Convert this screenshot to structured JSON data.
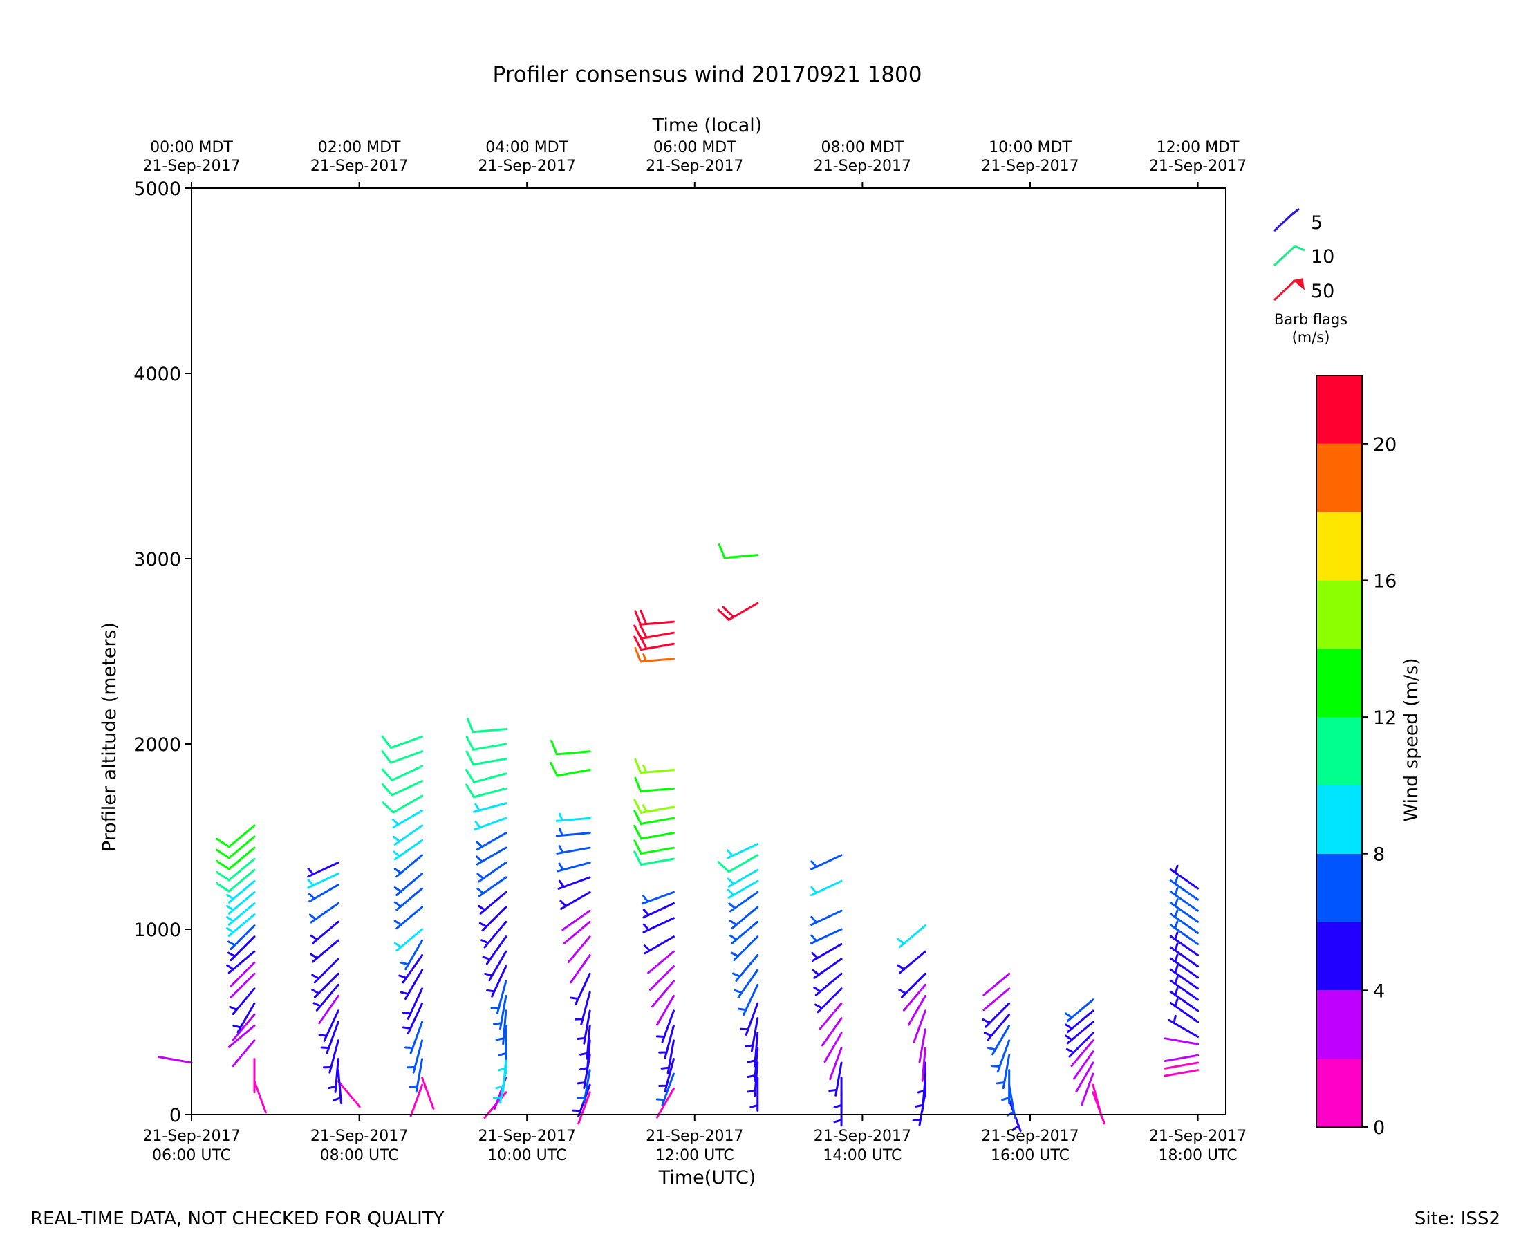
{
  "chart_data": {
    "type": "wind_barbs",
    "title": "Profiler consensus wind 20170921 1800",
    "xlabel": "Time(UTC)",
    "x2label": "Time (local)",
    "ylabel": "Profiler altitude (meters)",
    "ylim": [
      0,
      5000
    ],
    "xlim": [
      "2017-09-21T06:00Z",
      "2017-09-21T18:20Z"
    ],
    "yticks": [
      "0",
      "1000",
      "2000",
      "3000",
      "4000",
      "5000"
    ],
    "xticks_utc": [
      {
        "date": "21-Sep-2017",
        "time": "06:00 UTC"
      },
      {
        "date": "21-Sep-2017",
        "time": "08:00 UTC"
      },
      {
        "date": "21-Sep-2017",
        "time": "10:00 UTC"
      },
      {
        "date": "21-Sep-2017",
        "time": "12:00 UTC"
      },
      {
        "date": "21-Sep-2017",
        "time": "14:00 UTC"
      },
      {
        "date": "21-Sep-2017",
        "time": "16:00 UTC"
      },
      {
        "date": "21-Sep-2017",
        "time": "18:00 UTC"
      }
    ],
    "xticks_local": [
      {
        "time": "00:00 MDT",
        "date": "21-Sep-2017"
      },
      {
        "time": "02:00 MDT",
        "date": "21-Sep-2017"
      },
      {
        "time": "04:00 MDT",
        "date": "21-Sep-2017"
      },
      {
        "time": "06:00 MDT",
        "date": "21-Sep-2017"
      },
      {
        "time": "08:00 MDT",
        "date": "21-Sep-2017"
      },
      {
        "time": "10:00 MDT",
        "date": "21-Sep-2017"
      },
      {
        "time": "12:00 MDT",
        "date": "21-Sep-2017"
      }
    ],
    "barb_legend": {
      "title": "Barb flags",
      "units": "(m/s)",
      "items": [
        {
          "label": "5",
          "color": "#2a17e8"
        },
        {
          "label": "10",
          "color": "#17f08a"
        },
        {
          "label": "50",
          "color": "#f0132b"
        }
      ]
    },
    "colorbar": {
      "label": "Wind speed (m/s)",
      "ticks": [
        "0",
        "4",
        "8",
        "12",
        "16",
        "20"
      ],
      "bounds": [
        0,
        2,
        4,
        6,
        8,
        10,
        12,
        14,
        16,
        18,
        20,
        22
      ],
      "colors": [
        "#ff00c8",
        "#bf00ff",
        "#2200ff",
        "#0055ff",
        "#00e5ff",
        "#00ff8c",
        "#00ff00",
        "#8cff00",
        "#ffe600",
        "#ff6600",
        "#ff0030"
      ]
    },
    "profiles": [
      {
        "t": "06:00",
        "levels": [
          [
            280,
            280,
            2
          ]
        ]
      },
      {
        "t": "06:45",
        "levels": [
          [
            180,
            160,
            1
          ],
          [
            300,
            180,
            1
          ],
          [
            400,
            220,
            3
          ],
          [
            480,
            230,
            3
          ],
          [
            540,
            220,
            3
          ],
          [
            600,
            210,
            5
          ],
          [
            680,
            220,
            5
          ],
          [
            760,
            225,
            3
          ],
          [
            820,
            225,
            3
          ],
          [
            880,
            230,
            5
          ],
          [
            960,
            225,
            5
          ],
          [
            1020,
            225,
            7
          ],
          [
            1080,
            230,
            9
          ],
          [
            1140,
            230,
            9
          ],
          [
            1200,
            230,
            9
          ],
          [
            1260,
            230,
            9
          ],
          [
            1320,
            230,
            11
          ],
          [
            1380,
            230,
            11
          ],
          [
            1440,
            230,
            13
          ],
          [
            1500,
            230,
            13
          ],
          [
            1560,
            230,
            13
          ]
        ]
      },
      {
        "t": "07:45",
        "levels": [
          [
            180,
            140,
            1
          ],
          [
            240,
            175,
            5
          ],
          [
            300,
            185,
            5
          ],
          [
            400,
            195,
            5
          ],
          [
            500,
            200,
            5
          ],
          [
            560,
            205,
            5
          ],
          [
            640,
            215,
            3
          ],
          [
            700,
            220,
            5
          ],
          [
            760,
            225,
            5
          ],
          [
            840,
            225,
            5
          ],
          [
            940,
            230,
            5
          ],
          [
            1040,
            230,
            5
          ],
          [
            1140,
            235,
            7
          ],
          [
            1240,
            240,
            7
          ],
          [
            1300,
            245,
            9
          ],
          [
            1360,
            245,
            5
          ]
        ]
      },
      {
        "t": "08:45",
        "levels": [
          [
            160,
            200,
            1
          ],
          [
            200,
            160,
            1
          ],
          [
            300,
            190,
            7
          ],
          [
            400,
            195,
            7
          ],
          [
            500,
            200,
            7
          ],
          [
            600,
            205,
            5
          ],
          [
            680,
            205,
            5
          ],
          [
            780,
            210,
            5
          ],
          [
            860,
            215,
            5
          ],
          [
            940,
            210,
            7
          ],
          [
            1000,
            230,
            9
          ],
          [
            1120,
            230,
            7
          ],
          [
            1220,
            230,
            7
          ],
          [
            1300,
            230,
            7
          ],
          [
            1400,
            230,
            7
          ],
          [
            1480,
            235,
            9
          ],
          [
            1560,
            235,
            9
          ],
          [
            1640,
            240,
            9
          ],
          [
            1720,
            240,
            11
          ],
          [
            1800,
            245,
            11
          ],
          [
            1880,
            245,
            11
          ],
          [
            1960,
            250,
            11
          ],
          [
            2040,
            250,
            11
          ]
        ]
      },
      {
        "t": "09:45",
        "levels": [
          [
            120,
            220,
            1
          ],
          [
            200,
            200,
            3
          ],
          [
            240,
            190,
            9
          ],
          [
            300,
            185,
            9
          ],
          [
            400,
            180,
            9
          ],
          [
            480,
            180,
            7
          ],
          [
            560,
            185,
            7
          ],
          [
            640,
            190,
            7
          ],
          [
            720,
            195,
            7
          ],
          [
            800,
            205,
            5
          ],
          [
            880,
            210,
            5
          ],
          [
            960,
            215,
            5
          ],
          [
            1040,
            220,
            5
          ],
          [
            1120,
            225,
            5
          ],
          [
            1200,
            230,
            5
          ],
          [
            1280,
            235,
            7
          ],
          [
            1360,
            235,
            7
          ],
          [
            1440,
            240,
            7
          ],
          [
            1520,
            240,
            7
          ],
          [
            1600,
            250,
            9
          ],
          [
            1680,
            255,
            9
          ],
          [
            1760,
            255,
            11
          ],
          [
            1840,
            255,
            11
          ],
          [
            1920,
            260,
            11
          ],
          [
            2000,
            260,
            11
          ],
          [
            2080,
            265,
            11
          ]
        ]
      },
      {
        "t": "10:45",
        "levels": [
          [
            120,
            200,
            1
          ],
          [
            160,
            200,
            5
          ],
          [
            240,
            190,
            7
          ],
          [
            320,
            190,
            5
          ],
          [
            400,
            185,
            5
          ],
          [
            480,
            185,
            5
          ],
          [
            560,
            190,
            5
          ],
          [
            660,
            195,
            5
          ],
          [
            760,
            205,
            5
          ],
          [
            860,
            215,
            3
          ],
          [
            960,
            220,
            3
          ],
          [
            1040,
            230,
            3
          ],
          [
            1100,
            235,
            3
          ],
          [
            1200,
            240,
            5
          ],
          [
            1280,
            250,
            5
          ],
          [
            1360,
            255,
            7
          ],
          [
            1440,
            260,
            7
          ],
          [
            1520,
            265,
            7
          ],
          [
            1600,
            265,
            9
          ],
          [
            1860,
            260,
            13
          ],
          [
            1960,
            265,
            13
          ]
        ]
      },
      {
        "t": "11:45",
        "levels": [
          [
            140,
            210,
            1
          ],
          [
            220,
            200,
            7
          ],
          [
            300,
            195,
            5
          ],
          [
            400,
            190,
            5
          ],
          [
            480,
            195,
            5
          ],
          [
            560,
            200,
            5
          ],
          [
            640,
            210,
            3
          ],
          [
            720,
            220,
            3
          ],
          [
            800,
            225,
            3
          ],
          [
            880,
            230,
            3
          ],
          [
            960,
            240,
            5
          ],
          [
            1060,
            245,
            5
          ],
          [
            1140,
            245,
            5
          ],
          [
            1200,
            250,
            7
          ],
          [
            1380,
            260,
            11
          ],
          [
            1440,
            260,
            13
          ],
          [
            1520,
            260,
            13
          ],
          [
            1600,
            260,
            13
          ],
          [
            1660,
            260,
            15
          ],
          [
            1760,
            265,
            13
          ],
          [
            1860,
            265,
            15
          ],
          [
            2460,
            265,
            19
          ],
          [
            2540,
            260,
            21
          ],
          [
            2600,
            260,
            21
          ],
          [
            2660,
            265,
            21
          ]
        ]
      },
      {
        "t": "12:45",
        "levels": [
          [
            200,
            180,
            5
          ],
          [
            280,
            185,
            5
          ],
          [
            360,
            185,
            5
          ],
          [
            440,
            185,
            5
          ],
          [
            520,
            190,
            5
          ],
          [
            600,
            200,
            5
          ],
          [
            700,
            205,
            7
          ],
          [
            780,
            215,
            7
          ],
          [
            860,
            220,
            7
          ],
          [
            960,
            225,
            7
          ],
          [
            1040,
            230,
            7
          ],
          [
            1120,
            230,
            7
          ],
          [
            1200,
            235,
            7
          ],
          [
            1260,
            240,
            9
          ],
          [
            1320,
            240,
            9
          ],
          [
            1400,
            240,
            11
          ],
          [
            1460,
            245,
            9
          ],
          [
            2760,
            240,
            21
          ],
          [
            3020,
            265,
            13
          ]
        ]
      },
      {
        "t": "13:45",
        "levels": [
          [
            120,
            180,
            5
          ],
          [
            200,
            180,
            5
          ],
          [
            280,
            190,
            5
          ],
          [
            360,
            200,
            3
          ],
          [
            440,
            210,
            3
          ],
          [
            520,
            215,
            3
          ],
          [
            600,
            220,
            3
          ],
          [
            680,
            225,
            5
          ],
          [
            760,
            230,
            5
          ],
          [
            840,
            235,
            5
          ],
          [
            920,
            240,
            5
          ],
          [
            1000,
            245,
            7
          ],
          [
            1100,
            245,
            7
          ],
          [
            1260,
            245,
            9
          ],
          [
            1400,
            245,
            7
          ]
        ]
      },
      {
        "t": "14:45",
        "levels": [
          [
            120,
            190,
            5
          ],
          [
            200,
            185,
            5
          ],
          [
            280,
            180,
            5
          ],
          [
            360,
            185,
            3
          ],
          [
            460,
            190,
            3
          ],
          [
            560,
            200,
            3
          ],
          [
            640,
            210,
            3
          ],
          [
            700,
            220,
            3
          ],
          [
            760,
            225,
            5
          ],
          [
            880,
            230,
            5
          ],
          [
            1020,
            230,
            9
          ]
        ]
      },
      {
        "t": "15:45",
        "levels": [
          [
            80,
            160,
            5
          ],
          [
            160,
            170,
            7
          ],
          [
            240,
            180,
            7
          ],
          [
            320,
            190,
            7
          ],
          [
            400,
            200,
            7
          ],
          [
            480,
            210,
            7
          ],
          [
            540,
            220,
            5
          ],
          [
            600,
            225,
            5
          ],
          [
            680,
            230,
            3
          ],
          [
            760,
            230,
            3
          ]
        ]
      },
      {
        "t": "16:45",
        "levels": [
          [
            120,
            160,
            1
          ],
          [
            160,
            165,
            1
          ],
          [
            220,
            200,
            3
          ],
          [
            280,
            210,
            3
          ],
          [
            340,
            215,
            3
          ],
          [
            400,
            220,
            3
          ],
          [
            440,
            225,
            5
          ],
          [
            500,
            230,
            5
          ],
          [
            560,
            230,
            5
          ],
          [
            620,
            230,
            7
          ]
        ]
      },
      {
        "t": "18:00",
        "levels": [
          [
            240,
            260,
            1
          ],
          [
            280,
            260,
            1
          ],
          [
            320,
            260,
            3
          ],
          [
            380,
            280,
            3
          ],
          [
            420,
            300,
            5
          ],
          [
            500,
            305,
            5
          ],
          [
            560,
            305,
            5
          ],
          [
            620,
            305,
            5
          ],
          [
            680,
            305,
            5
          ],
          [
            740,
            305,
            5
          ],
          [
            800,
            305,
            5
          ],
          [
            860,
            305,
            5
          ],
          [
            920,
            305,
            7
          ],
          [
            980,
            305,
            7
          ],
          [
            1040,
            305,
            7
          ],
          [
            1100,
            305,
            7
          ],
          [
            1160,
            305,
            7
          ],
          [
            1220,
            305,
            5
          ]
        ]
      }
    ],
    "footer_left": "REAL-TIME DATA, NOT CHECKED FOR QUALITY",
    "footer_right": "Site: ISS2"
  }
}
